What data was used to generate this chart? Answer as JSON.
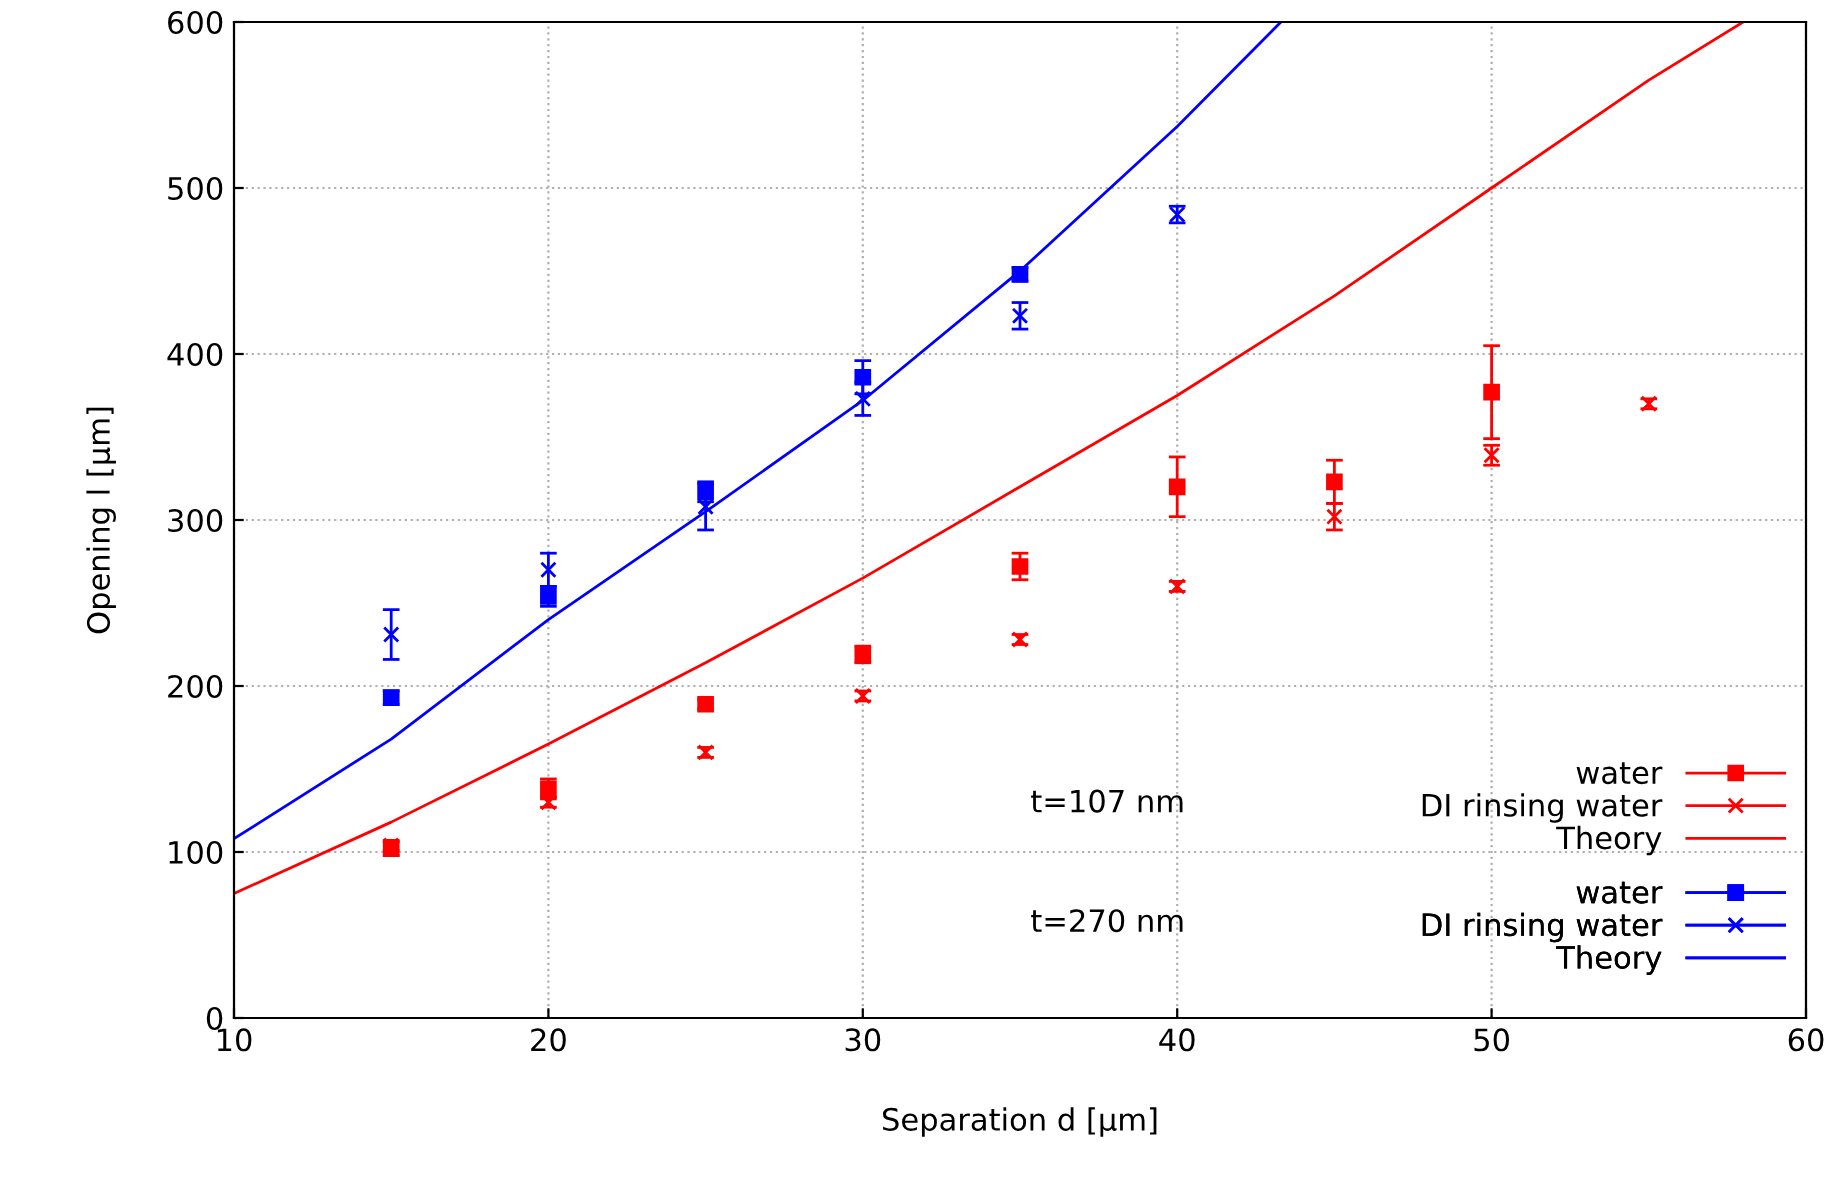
{
  "chart_data": {
    "type": "scatter",
    "xlabel": "Separation d [µm]",
    "ylabel": "Opening l [µm]",
    "xlim": [
      10,
      60
    ],
    "ylim": [
      0,
      600
    ],
    "xticks": [
      10,
      20,
      30,
      40,
      50,
      60
    ],
    "yticks": [
      0,
      100,
      200,
      300,
      400,
      500,
      600
    ],
    "grid": true,
    "legend": "bottom right",
    "annotations": [
      "t=107 nm",
      "t=270 nm"
    ],
    "series": [
      {
        "name": "water",
        "color": "#ff0000",
        "marker": "square",
        "x": [
          15,
          20,
          25,
          30,
          35,
          40,
          45,
          50
        ],
        "values": [
          102,
          138,
          189,
          219,
          272,
          320,
          323,
          377
        ],
        "errors": [
          4,
          6,
          3,
          5,
          8,
          18,
          13,
          28
        ]
      },
      {
        "name": "DI rinsing water",
        "color": "#ff0000",
        "marker": "cross",
        "x": [
          15,
          20,
          25,
          30,
          35,
          40,
          45,
          50,
          55
        ],
        "values": [
          104,
          130,
          160,
          194,
          228,
          260,
          302,
          339,
          370
        ],
        "errors": [
          3,
          3,
          3,
          3,
          3,
          3,
          8,
          6,
          3
        ]
      },
      {
        "name": "Theory",
        "type": "line",
        "color": "#ff0000",
        "marker": "none",
        "x": [
          10,
          15,
          20,
          25,
          30,
          35,
          40,
          45,
          50,
          55,
          58
        ],
        "values": [
          75,
          118,
          165,
          214,
          265,
          320,
          375,
          435,
          500,
          565,
          600
        ]
      },
      {
        "name": "water",
        "color": "#0000ff",
        "marker": "square",
        "x": [
          15,
          20,
          25,
          30,
          35
        ],
        "values": [
          193,
          254,
          317,
          386,
          448
        ],
        "errors": [
          4,
          6,
          6,
          10,
          4
        ]
      },
      {
        "name": "DI rinsing water",
        "color": "#0000ff",
        "marker": "cross",
        "x": [
          15,
          20,
          25,
          30,
          35,
          40
        ],
        "values": [
          231,
          270,
          308,
          373,
          423,
          484
        ],
        "errors": [
          15,
          10,
          14,
          10,
          8,
          5
        ]
      },
      {
        "name": "Theory",
        "type": "line",
        "color": "#0000ff",
        "marker": "none",
        "x": [
          10,
          15,
          20,
          25,
          30,
          35,
          40,
          43.3
        ],
        "values": [
          108,
          168,
          240,
          305,
          372,
          450,
          537,
          600
        ]
      }
    ]
  }
}
